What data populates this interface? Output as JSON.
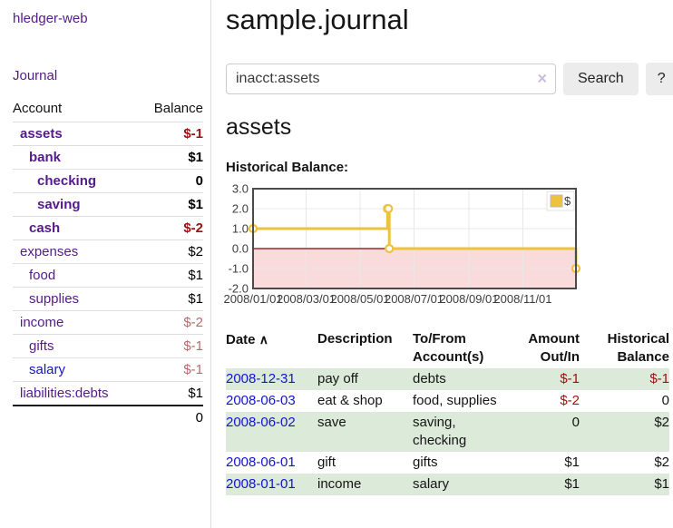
{
  "app": {
    "brand": "hledger-web",
    "nav_journal": "Journal"
  },
  "sidebar": {
    "col_account": "Account",
    "col_balance": "Balance",
    "accounts": [
      {
        "name": "assets",
        "balance": "$-1",
        "level": 1,
        "bold": true,
        "value_style": "neg-strong"
      },
      {
        "name": "bank",
        "balance": "$1",
        "level": 2,
        "bold": true,
        "value_style": "pos"
      },
      {
        "name": "checking",
        "balance": "0",
        "level": 3,
        "bold": true,
        "value_style": "pos"
      },
      {
        "name": "saving",
        "balance": "$1",
        "level": 3,
        "bold": true,
        "value_style": "pos"
      },
      {
        "name": "cash",
        "balance": "$-2",
        "level": 2,
        "bold": true,
        "value_style": "neg-strong"
      },
      {
        "name": "expenses",
        "balance": "$2",
        "level": 1,
        "bold": false,
        "value_style": "pos"
      },
      {
        "name": "food",
        "balance": "$1",
        "level": 2,
        "bold": false,
        "value_style": "pos"
      },
      {
        "name": "supplies",
        "balance": "$1",
        "level": 2,
        "bold": false,
        "value_style": "pos"
      },
      {
        "name": "income",
        "balance": "$-2",
        "level": 1,
        "bold": false,
        "value_style": "neg-soft"
      },
      {
        "name": "gifts",
        "balance": "$-1",
        "level": 2,
        "bold": false,
        "value_style": "neg-soft"
      },
      {
        "name": "salary",
        "balance": "$-1",
        "level": 2,
        "bold": false,
        "value_style": "neg-soft",
        "link_color": "blue"
      },
      {
        "name": "liabilities:debts",
        "balance": "$1",
        "level": 1,
        "bold": false,
        "value_style": "pos"
      }
    ],
    "total": "0"
  },
  "main": {
    "title": "sample.journal",
    "account_title": "assets",
    "chart_heading": "Historical Balance:"
  },
  "search": {
    "value": "inacct:assets",
    "clear_icon": "×",
    "search_label": "Search",
    "help_label": "?"
  },
  "chart_data": {
    "type": "line",
    "title": "Historical Balance:",
    "step": true,
    "series": [
      {
        "name": "$",
        "color": "#edc240",
        "points": [
          {
            "date": "2008-01-01",
            "value": 1
          },
          {
            "date": "2008-06-01",
            "value": 2
          },
          {
            "date": "2008-06-02",
            "value": 2
          },
          {
            "date": "2008-06-03",
            "value": 0
          },
          {
            "date": "2008-12-31",
            "value": -1
          }
        ]
      }
    ],
    "x_range": [
      "2008-01-01",
      "2008-12-31"
    ],
    "xticks": [
      "2008/01/01",
      "2008/03/01",
      "2008/05/01",
      "2008/07/01",
      "2008/09/01",
      "2008/11/01"
    ],
    "yticks": [
      "3.0",
      "2.0",
      "1.0",
      "0.0",
      "-1.0",
      "-2.0"
    ],
    "ylim": [
      -2,
      3
    ],
    "grid": true,
    "legend": {
      "label": "$",
      "position": "top-right",
      "swatch_color": "#edc240"
    },
    "negative_region": {
      "fill": "#fadbdb",
      "line_color": "#8b0000"
    },
    "frame_color": "#4a4a4a",
    "grid_color": "#e8e8e8"
  },
  "register": {
    "columns": [
      {
        "label": "Date",
        "sort_icon": "∧"
      },
      {
        "label": "Description"
      },
      {
        "label": "To/From Account(s)"
      },
      {
        "label": "Amount Out/In"
      },
      {
        "label": "Historical Balance"
      }
    ],
    "rows": [
      {
        "date": "2008-12-31",
        "description": "pay off",
        "accounts": "debts",
        "amount": "$-1",
        "amount_negative": true,
        "balance": "$-1",
        "balance_negative": true
      },
      {
        "date": "2008-06-03",
        "description": "eat & shop",
        "accounts": "food, supplies",
        "amount": "$-2",
        "amount_negative": true,
        "balance": "0",
        "balance_negative": false
      },
      {
        "date": "2008-06-02",
        "description": "save",
        "accounts": "saving, checking",
        "amount": "0",
        "amount_negative": false,
        "balance": "$2",
        "balance_negative": false
      },
      {
        "date": "2008-06-01",
        "description": "gift",
        "accounts": "gifts",
        "amount": "$1",
        "amount_negative": false,
        "balance": "$2",
        "balance_negative": false
      },
      {
        "date": "2008-01-01",
        "description": "income",
        "accounts": "salary",
        "amount": "$1",
        "amount_negative": false,
        "balance": "$1",
        "balance_negative": false
      }
    ]
  },
  "colors": {
    "link_purple": "#551a8b",
    "link_blue": "#1414cc",
    "negative_strong": "#991111",
    "negative_soft": "#b96a6a",
    "row_green": "#dcead9",
    "series_gold": "#edc240"
  }
}
